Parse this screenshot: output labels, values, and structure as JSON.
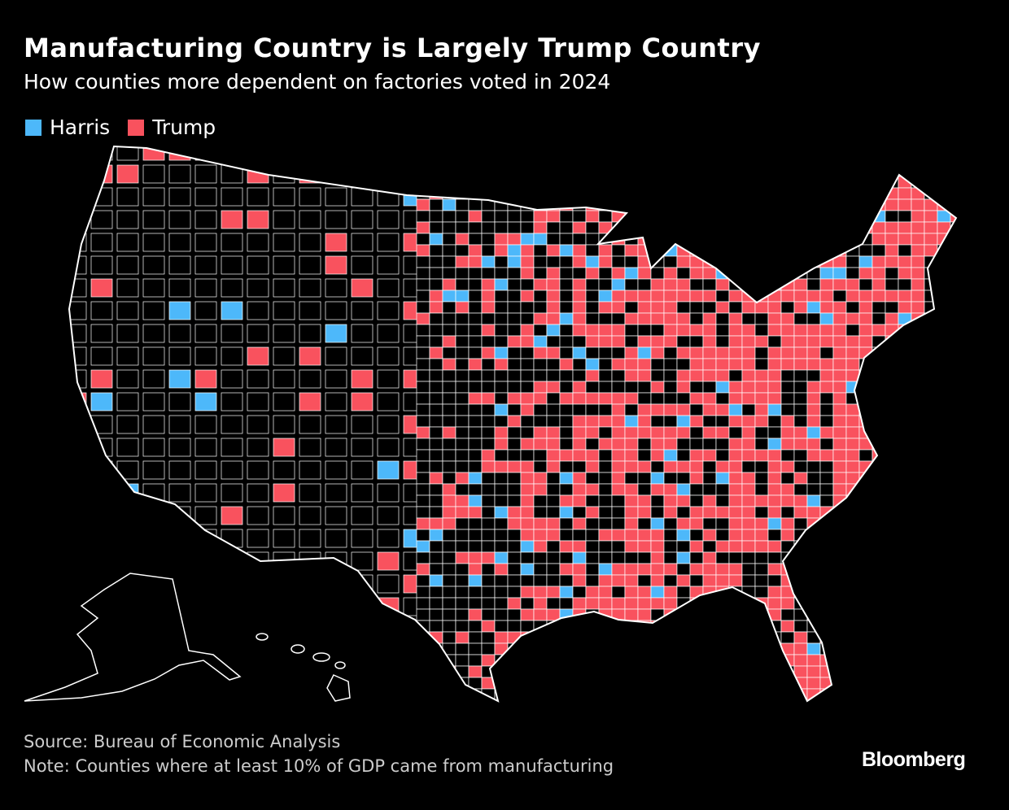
{
  "header": {
    "title": "Manufacturing Country is Largely Trump Country",
    "subtitle": "How counties more dependent on factories voted in 2024"
  },
  "legend": [
    {
      "label": "Harris",
      "color": "#4DB8FA"
    },
    {
      "label": "Trump",
      "color": "#F9525E"
    }
  ],
  "map": {
    "type": "choropleth",
    "region": "United States counties",
    "background_color": "#000000",
    "border_color": "#FFFFFF"
  },
  "footer": {
    "source": "Source: Bureau of Economic Analysis",
    "note": "Note: Counties where at least 10% of GDP came from manufacturing",
    "logo": "Bloomberg"
  }
}
